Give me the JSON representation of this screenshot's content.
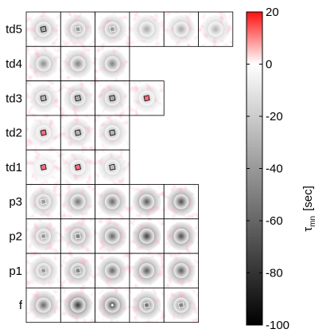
{
  "chart_data": {
    "type": "heatmap",
    "rows": [
      {
        "label": "td5",
        "panels": [
          -40,
          -45,
          -45,
          -35,
          -35,
          -30
        ],
        "markers": [
          "square",
          "square",
          "square",
          "none",
          "none",
          "none"
        ]
      },
      {
        "label": "td4",
        "panels": [
          -45,
          -50,
          -50
        ],
        "markers": [
          "none",
          "none",
          "none"
        ]
      },
      {
        "label": "td3",
        "panels": [
          -35,
          -40,
          -40,
          -25
        ],
        "markers": [
          "square",
          "square",
          "square",
          "square"
        ]
      },
      {
        "label": "td2",
        "panels": [
          -25,
          -35,
          -35
        ],
        "markers": [
          "square",
          "square",
          "square"
        ]
      },
      {
        "label": "td1",
        "panels": [
          -15,
          -25,
          -30
        ],
        "markers": [
          "square",
          "square",
          "square"
        ]
      },
      {
        "label": "p3",
        "panels": [
          -45,
          -55,
          -60,
          -65,
          -70
        ],
        "markers": [
          "square",
          "none",
          "none",
          "none",
          "none"
        ]
      },
      {
        "label": "p2",
        "panels": [
          -45,
          -55,
          -60,
          -75,
          -70
        ],
        "markers": [
          "square",
          "square",
          "none",
          "none",
          "none"
        ]
      },
      {
        "label": "p1",
        "panels": [
          -45,
          -55,
          -60,
          -65,
          -65
        ],
        "markers": [
          "square",
          "square",
          "none",
          "none",
          "none"
        ]
      },
      {
        "label": "f",
        "panels": [
          -60,
          -80,
          -75,
          -60,
          -55
        ],
        "markers": [
          "none",
          "none",
          "dot",
          "square",
          "square"
        ]
      }
    ],
    "colorbar": {
      "min": -100,
      "max": 20,
      "ticks": [
        20,
        0,
        -20,
        -40,
        -60,
        -80,
        -100
      ],
      "label": "τ",
      "label_sub": "mn",
      "label_unit": "[sec]",
      "colors": {
        "max": "#ff0000",
        "zero": "#ffffff",
        "min": "#000000"
      }
    }
  }
}
